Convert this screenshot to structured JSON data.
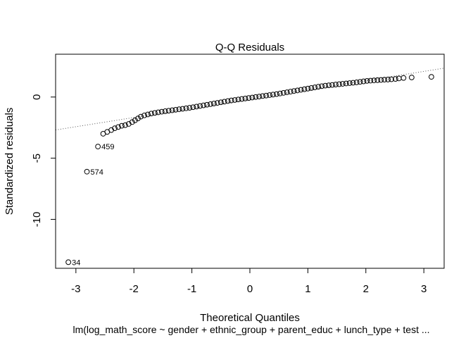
{
  "chart_data": {
    "type": "scatter",
    "title": "Q-Q Residuals",
    "xlabel": "Theoretical Quantiles",
    "ylabel": "Standardized residuals",
    "subtitle": "lm(log_math_score ~ gender + ethnic_group + parent_educ + lunch_type + test ...",
    "xlim": [
      -3.35,
      3.35
    ],
    "ylim": [
      -14.0,
      3.5
    ],
    "xticks": [
      -3,
      -2,
      -1,
      0,
      1,
      2,
      3
    ],
    "xtick_labels": [
      "-3",
      "-2",
      "-1",
      "0",
      "1",
      "2",
      "3"
    ],
    "yticks": [
      -10,
      -5,
      0
    ],
    "ytick_labels": [
      "-10",
      "-5",
      "0"
    ],
    "reference_line": {
      "x1": -2.5,
      "y1": -2.05,
      "x2": 2.5,
      "y2": 1.72
    },
    "labeled_points": [
      {
        "label": "34",
        "x": -3.13,
        "y": -13.5
      },
      {
        "label": "574",
        "x": -2.81,
        "y": -6.1
      },
      {
        "label": "459",
        "x": -2.62,
        "y": -4.05
      }
    ],
    "points": [
      [
        -3.13,
        -13.5
      ],
      [
        -2.81,
        -6.1
      ],
      [
        -2.62,
        -4.05
      ],
      [
        -2.53,
        -3.0
      ],
      [
        -2.46,
        -2.85
      ],
      [
        -2.39,
        -2.7
      ],
      [
        -2.33,
        -2.55
      ],
      [
        -2.27,
        -2.45
      ],
      [
        -2.21,
        -2.35
      ],
      [
        -2.15,
        -2.3
      ],
      [
        -2.09,
        -2.2
      ],
      [
        -2.03,
        -2.05
      ],
      [
        -1.98,
        -1.9
      ],
      [
        -1.93,
        -1.75
      ],
      [
        -1.88,
        -1.6
      ],
      [
        -1.82,
        -1.5
      ],
      [
        -1.76,
        -1.42
      ],
      [
        -1.7,
        -1.35
      ],
      [
        -1.64,
        -1.3
      ],
      [
        -1.58,
        -1.25
      ],
      [
        -1.52,
        -1.2
      ],
      [
        -1.46,
        -1.16
      ],
      [
        -1.4,
        -1.12
      ],
      [
        -1.34,
        -1.08
      ],
      [
        -1.28,
        -1.04
      ],
      [
        -1.22,
        -1.0
      ],
      [
        -1.16,
        -0.96
      ],
      [
        -1.1,
        -0.92
      ],
      [
        -1.04,
        -0.88
      ],
      [
        -0.98,
        -0.83
      ],
      [
        -0.92,
        -0.78
      ],
      [
        -0.86,
        -0.73
      ],
      [
        -0.8,
        -0.68
      ],
      [
        -0.74,
        -0.63
      ],
      [
        -0.68,
        -0.58
      ],
      [
        -0.62,
        -0.53
      ],
      [
        -0.56,
        -0.48
      ],
      [
        -0.5,
        -0.43
      ],
      [
        -0.44,
        -0.38
      ],
      [
        -0.38,
        -0.33
      ],
      [
        -0.32,
        -0.28
      ],
      [
        -0.26,
        -0.24
      ],
      [
        -0.2,
        -0.2
      ],
      [
        -0.14,
        -0.16
      ],
      [
        -0.08,
        -0.12
      ],
      [
        -0.02,
        -0.08
      ],
      [
        0.04,
        -0.04
      ],
      [
        0.1,
        0.0
      ],
      [
        0.16,
        0.04
      ],
      [
        0.22,
        0.08
      ],
      [
        0.28,
        0.12
      ],
      [
        0.34,
        0.16
      ],
      [
        0.4,
        0.2
      ],
      [
        0.46,
        0.24
      ],
      [
        0.52,
        0.29
      ],
      [
        0.58,
        0.34
      ],
      [
        0.64,
        0.39
      ],
      [
        0.7,
        0.44
      ],
      [
        0.76,
        0.49
      ],
      [
        0.82,
        0.54
      ],
      [
        0.88,
        0.59
      ],
      [
        0.94,
        0.64
      ],
      [
        1.0,
        0.69
      ],
      [
        1.06,
        0.74
      ],
      [
        1.12,
        0.79
      ],
      [
        1.18,
        0.84
      ],
      [
        1.24,
        0.89
      ],
      [
        1.3,
        0.93
      ],
      [
        1.36,
        0.96
      ],
      [
        1.42,
        0.99
      ],
      [
        1.48,
        1.02
      ],
      [
        1.54,
        1.05
      ],
      [
        1.6,
        1.08
      ],
      [
        1.66,
        1.11
      ],
      [
        1.72,
        1.14
      ],
      [
        1.78,
        1.17
      ],
      [
        1.84,
        1.2
      ],
      [
        1.9,
        1.24
      ],
      [
        1.96,
        1.28
      ],
      [
        2.02,
        1.32
      ],
      [
        2.08,
        1.34
      ],
      [
        2.14,
        1.36
      ],
      [
        2.2,
        1.38
      ],
      [
        2.26,
        1.4
      ],
      [
        2.32,
        1.42
      ],
      [
        2.38,
        1.43
      ],
      [
        2.44,
        1.45
      ],
      [
        2.51,
        1.48
      ],
      [
        2.57,
        1.52
      ],
      [
        2.65,
        1.56
      ],
      [
        2.79,
        1.6
      ],
      [
        3.13,
        1.65
      ]
    ]
  }
}
